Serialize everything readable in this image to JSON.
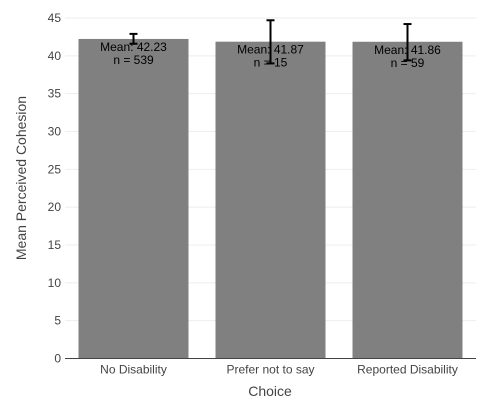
{
  "chart_data": {
    "type": "bar",
    "xlabel": "Choice",
    "ylabel": "Mean Perceived Cohesion",
    "ylim": [
      0,
      45
    ],
    "yticks": [
      0,
      5,
      10,
      15,
      20,
      25,
      30,
      35,
      40,
      45
    ],
    "grid": true,
    "categories": [
      "No Disability",
      "Prefer not to say",
      "Reported Disability"
    ],
    "values": [
      42.23,
      41.87,
      41.86
    ],
    "error_low": [
      41.6,
      39.0,
      39.4
    ],
    "error_high": [
      42.9,
      44.7,
      44.2
    ],
    "bar_labels": [
      [
        "Mean: 42.23",
        "n = 539"
      ],
      [
        "Mean: 41.87",
        "n = 15"
      ],
      [
        "Mean: 41.86",
        "n = 59"
      ]
    ],
    "colors": {
      "bar": "#808080",
      "grid": "#eeeeee",
      "axis": "#444444",
      "error_bar": "#000000"
    }
  }
}
